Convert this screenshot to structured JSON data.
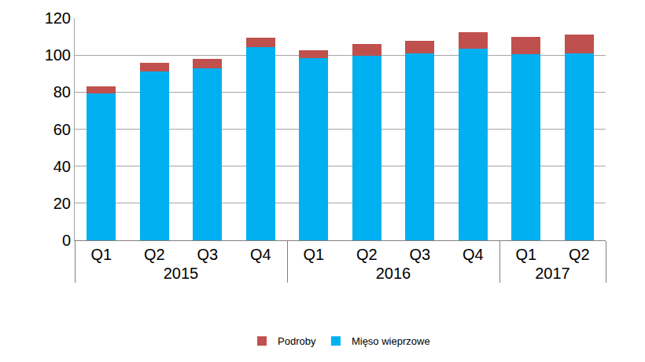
{
  "chart_data": {
    "type": "bar",
    "stacked": true,
    "categories": [
      [
        "2015",
        "Q1"
      ],
      [
        "2015",
        "Q2"
      ],
      [
        "2015",
        "Q3"
      ],
      [
        "2015",
        "Q4"
      ],
      [
        "2016",
        "Q1"
      ],
      [
        "2016",
        "Q2"
      ],
      [
        "2016",
        "Q3"
      ],
      [
        "2016",
        "Q4"
      ],
      [
        "2017",
        "Q1"
      ],
      [
        "2017",
        "Q2"
      ]
    ],
    "series": [
      {
        "name": "Mięso wieprzowe",
        "color": "#00b0f0",
        "values": [
          79.5,
          91,
          93,
          104.5,
          98.5,
          99.5,
          101,
          103.5,
          100.5,
          101
        ]
      },
      {
        "name": "Podroby",
        "color": "#c0504d",
        "values": [
          3.5,
          5,
          5,
          5,
          4,
          6.5,
          6.5,
          9,
          9.5,
          10
        ]
      }
    ],
    "ylim": [
      0,
      120
    ],
    "yticks": [
      0,
      20,
      40,
      60,
      80,
      100,
      120
    ],
    "grid": true,
    "legend": "bottom"
  }
}
